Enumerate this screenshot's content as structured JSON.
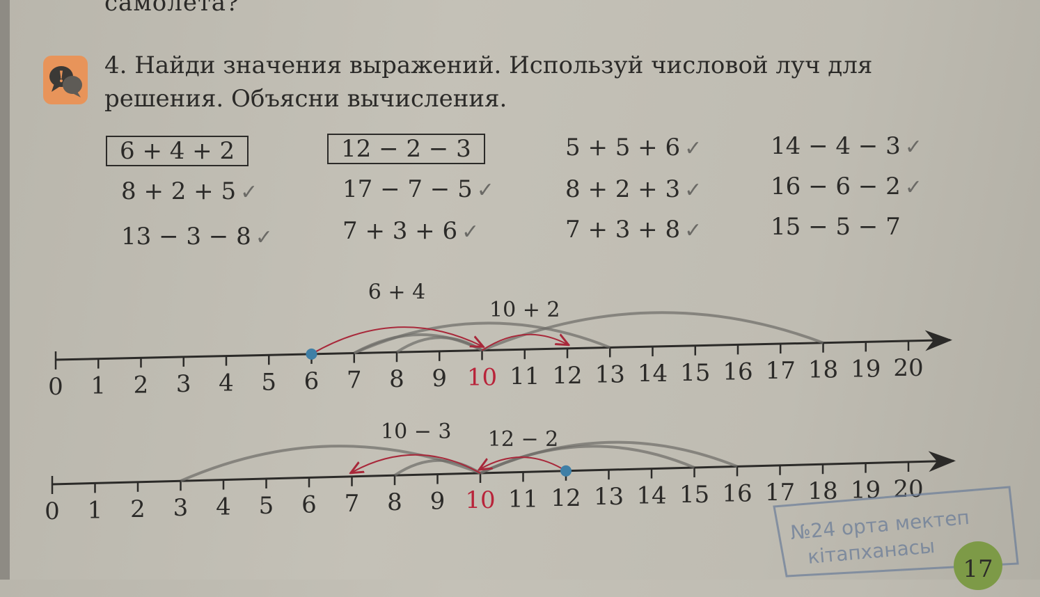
{
  "previous_text": "самолета?",
  "task": {
    "icon": "discussion-bubbles-icon",
    "text": "4. Найди значения выражений. Используй числовой луч для решения. Объясни вычисления."
  },
  "expressions": [
    [
      {
        "text": "6 + 4 + 2",
        "boxed": true,
        "check": ""
      },
      {
        "text": "8 + 2 + 5",
        "check": "✓"
      },
      {
        "text": "13 − 3 − 8",
        "check": "✓"
      }
    ],
    [
      {
        "text": "12 − 2 − 3",
        "boxed": true,
        "check": ""
      },
      {
        "text": "17 − 7 − 5",
        "check": "✓"
      },
      {
        "text": "7 + 3 + 6",
        "check": "✓"
      }
    ],
    [
      {
        "text": "5 + 5 + 6",
        "check": "✓"
      },
      {
        "text": "8 + 2 + 3",
        "check": "✓"
      },
      {
        "text": "7 + 3 + 8",
        "check": "✓"
      }
    ],
    [
      {
        "text": "14 − 4 − 3",
        "check": "✓"
      },
      {
        "text": "16 − 6 − 2",
        "check": "✓"
      },
      {
        "text": "15 − 5 − 7",
        "check": ""
      }
    ]
  ],
  "number_lines": [
    {
      "min": 0,
      "max": 20,
      "highlight": 10,
      "highlight_color": "#b8243a",
      "dot": 6,
      "jumps": [
        {
          "from": 6,
          "to": 10,
          "label": "6 + 4"
        },
        {
          "from": 10,
          "to": 12,
          "label": "10 + 2"
        }
      ]
    },
    {
      "min": 0,
      "max": 20,
      "highlight": 10,
      "highlight_color": "#b8243a",
      "dot": 12,
      "jumps": [
        {
          "from": 10,
          "to": 7,
          "label": "10 − 3"
        },
        {
          "from": 12,
          "to": 10,
          "label": "12 − 2"
        }
      ]
    }
  ],
  "stamp": {
    "line1": "№24 орта мектеп",
    "line2": "кітапханасы"
  },
  "page_number": "17",
  "colors": {
    "arrow": "#a8283a",
    "dot": "#3f7fa6",
    "pencil": "#6c6b67"
  }
}
